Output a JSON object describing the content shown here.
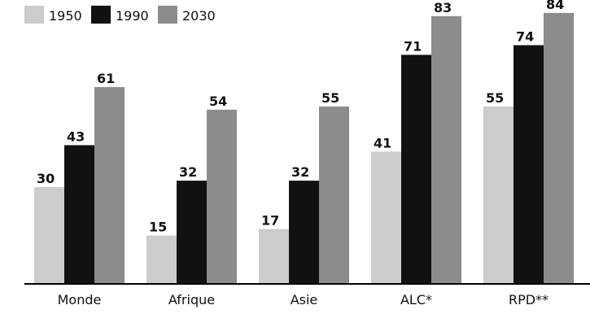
{
  "chart_data": {
    "type": "bar",
    "categories": [
      "Monde",
      "Afrique",
      "Asie",
      "ALC*",
      "RPD**"
    ],
    "series": [
      {
        "name": "1950",
        "color": "#cccccc",
        "values": [
          30,
          15,
          17,
          41,
          55
        ]
      },
      {
        "name": "1990",
        "color": "#111111",
        "values": [
          43,
          32,
          32,
          71,
          74
        ]
      },
      {
        "name": "2030",
        "color": "#8c8c8c",
        "values": [
          61,
          54,
          55,
          83,
          84
        ]
      }
    ],
    "data_labels": true,
    "ylim": [
      0,
      88
    ],
    "grid": false,
    "legend_position": "top-left",
    "title": "",
    "xlabel": "",
    "ylabel": ""
  }
}
